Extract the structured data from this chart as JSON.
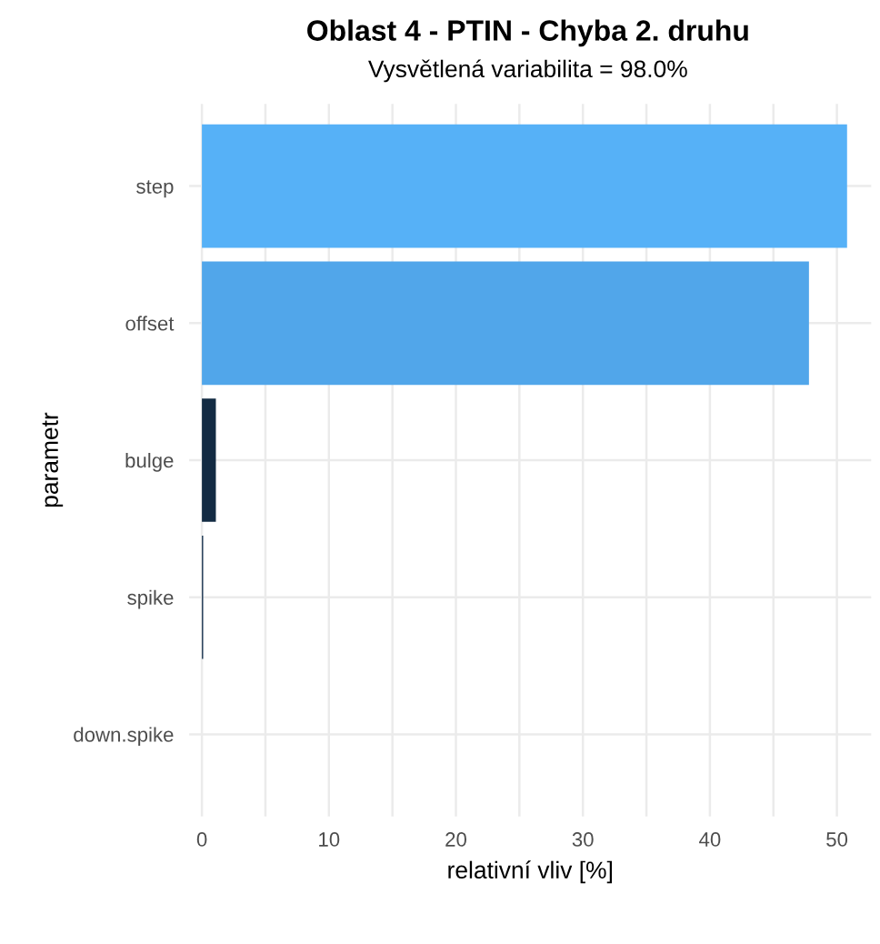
{
  "chart_data": {
    "type": "bar",
    "orientation": "horizontal",
    "title": "Oblast 4 - PTIN - Chyba 2. druhu",
    "subtitle": "Vysvětlená variabilita = 98.0%",
    "xlabel": "relativní vliv [%]",
    "ylabel": "parametr",
    "categories": [
      "step",
      "offset",
      "bulge",
      "spike",
      "down.spike"
    ],
    "values": [
      50.8,
      47.8,
      1.1,
      0.1,
      0
    ],
    "colors": [
      "#56b1f7",
      "#51a6ea",
      "#132b43",
      "#1a3550",
      "#132b43"
    ],
    "xlim": [
      -1,
      52.7
    ],
    "xticks": [
      0,
      {
        "value": 5,
        "label": null
      },
      10,
      {
        "value": 15,
        "label": null
      },
      20,
      {
        "value": 25,
        "label": null
      },
      30,
      {
        "value": 35,
        "label": null
      },
      40,
      {
        "value": 45,
        "label": null
      },
      50
    ],
    "grid": true
  }
}
